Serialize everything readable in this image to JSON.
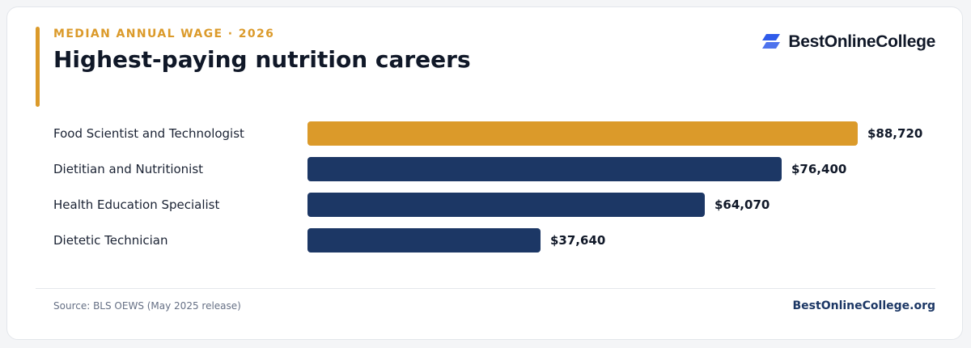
{
  "header": {
    "eyebrow": "MEDIAN ANNUAL WAGE · 2026",
    "title": "Highest-paying nutrition careers"
  },
  "brand": {
    "name": "BestOnlineCollege",
    "icon": "stacked-parallelogram-logo-icon",
    "icon_color": "#2f5bea"
  },
  "footer": {
    "source": "Source: BLS OEWS (May 2025 release)",
    "site": "BestOnlineCollege.org"
  },
  "colors": {
    "highlight": "#db9a2a",
    "primary": "#1c3765"
  },
  "chart_data": {
    "type": "bar",
    "orientation": "horizontal",
    "categories": [
      "Food Scientist and Technologist",
      "Dietitian and Nutritionist",
      "Health Education Specialist",
      "Dietetic Technician"
    ],
    "values": [
      88720,
      76400,
      64070,
      37640
    ],
    "value_labels": [
      "$88,720",
      "$76,400",
      "$64,070",
      "$37,640"
    ],
    "highlight_index": 0,
    "title": "Highest-paying nutrition careers",
    "xlabel": "",
    "ylabel": "",
    "grid": false
  }
}
